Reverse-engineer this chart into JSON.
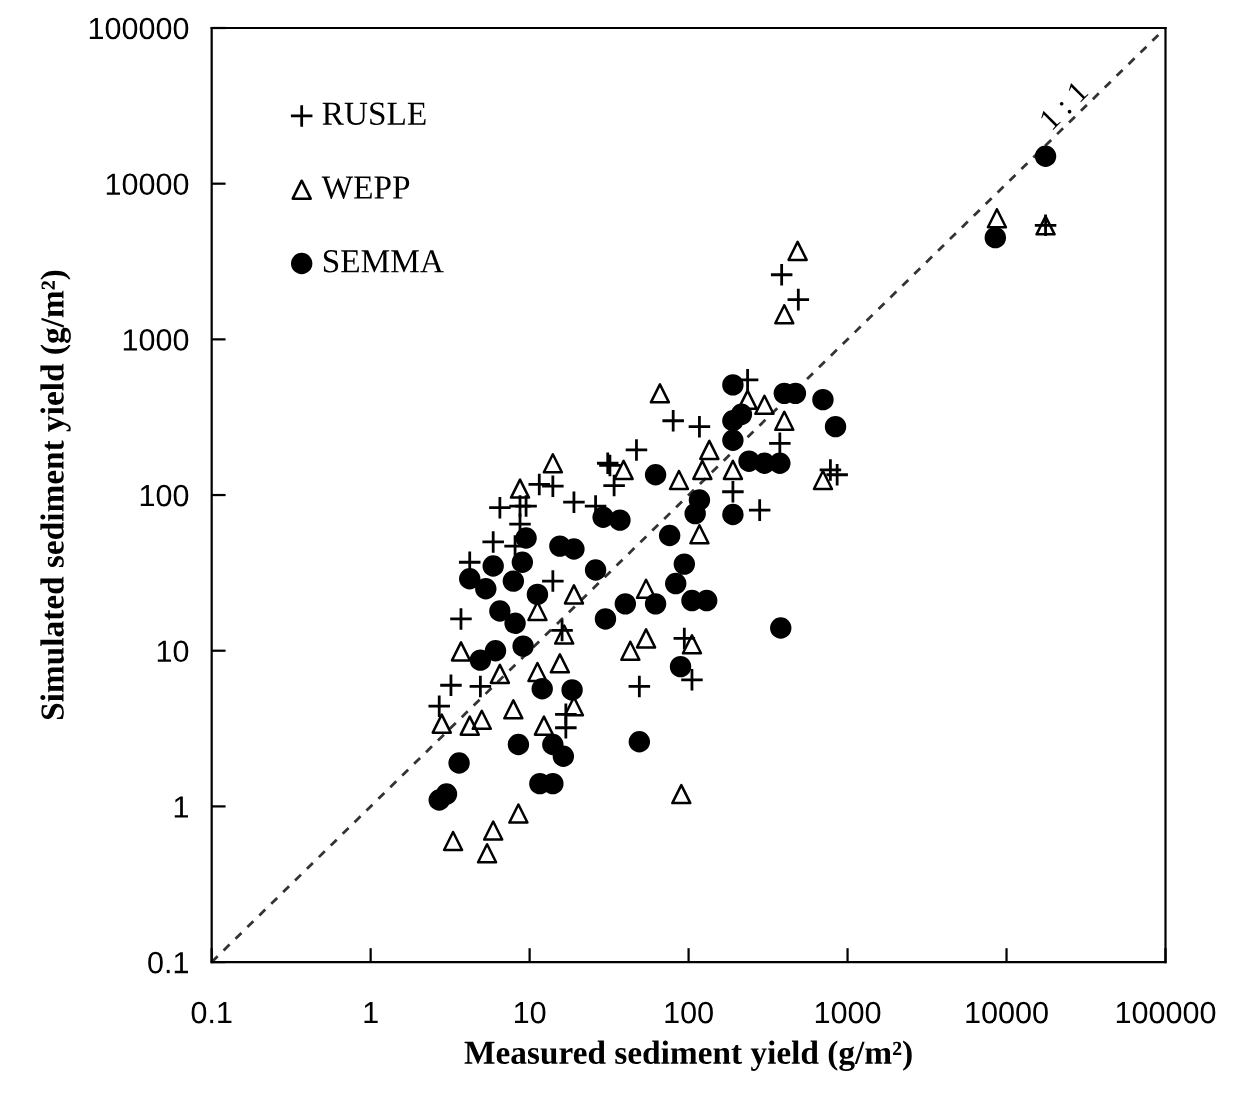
{
  "chart_data": {
    "type": "scatter",
    "xlabel": "Measured sediment yield (g/m²)",
    "ylabel": "Simulated sediment yield (g/m²)",
    "log": "xy",
    "xlim": [
      0.1,
      100000
    ],
    "ylim": [
      0.1,
      100000
    ],
    "xticks": [
      0.1,
      1,
      10,
      100,
      1000,
      10000,
      100000
    ],
    "yticks": [
      0.1,
      1,
      10,
      100,
      1000,
      10000,
      100000
    ],
    "grid": false,
    "legend": "top left",
    "annotations": [
      "1 : 1"
    ],
    "series": [
      {
        "name": "RUSLE",
        "color": "#000000",
        "marker": "cross",
        "x": [
          17600,
          385,
          490,
          80,
          117,
          47,
          32,
          190,
          235,
          375,
          780,
          860,
          280,
          34,
          94,
          105,
          49,
          31,
          11.5,
          14,
          6.5,
          8.7,
          9.5,
          19,
          26,
          8.7,
          5.9,
          8.1,
          4.2,
          14,
          3.7,
          16,
          4.9,
          3.2,
          2.7,
          16.9,
          16.9
        ],
        "values": [
          5400,
          2600,
          1800,
          300,
          275,
          195,
          155,
          105,
          550,
          215,
          145,
          135,
          80,
          115,
          12,
          6.5,
          5.9,
          160,
          117,
          114,
          83,
          85,
          85,
          90,
          85,
          65,
          50,
          47,
          37,
          28,
          16,
          13.5,
          5.9,
          6.0,
          4.4,
          3.9,
          3.2
        ]
      },
      {
        "name": "WEPP",
        "color": "#000000",
        "marker": "triangle",
        "x": [
          8700,
          17600,
          485,
          400,
          66,
          135,
          39,
          87,
          122,
          190,
          235,
          300,
          400,
          700,
          117,
          54,
          54,
          43,
          105,
          14,
          8.7,
          19,
          11.2,
          16.5,
          3.7,
          6.5,
          11.2,
          15.5,
          2.8,
          4.2,
          5.0,
          7.9,
          19,
          12.3,
          8.5,
          5.9,
          3.3,
          5.4,
          90
        ],
        "values": [
          6000,
          5400,
          3700,
          1450,
          450,
          195,
          145,
          125,
          145,
          145,
          410,
          380,
          300,
          125,
          56,
          25,
          12,
          10,
          11,
          160,
          110,
          23,
          18,
          12.7,
          9.9,
          7.1,
          7.3,
          8.3,
          3.4,
          3.3,
          3.6,
          4.2,
          4.4,
          3.3,
          0.9,
          0.7,
          0.6,
          0.5,
          1.2
        ]
      },
      {
        "name": "SEMMA",
        "color": "#000000",
        "marker": "circle",
        "x": [
          17600,
          8500,
          62,
          190,
          190,
          215,
          400,
          470,
          700,
          840,
          190,
          240,
          300,
          375,
          190,
          117,
          110,
          37,
          29,
          76,
          94,
          83,
          105,
          130,
          62,
          40,
          30,
          89,
          380,
          9.5,
          15.5,
          19,
          5.9,
          9,
          4.2,
          5.3,
          7.9,
          11.2,
          26,
          6.5,
          8.1,
          9.1,
          6.1,
          4.9,
          12,
          18.5,
          8.5,
          14,
          16.3,
          3.6,
          11.6,
          14,
          3.0,
          2.7,
          49
        ],
        "values": [
          15000,
          4500,
          135,
          510,
          300,
          330,
          450,
          450,
          410,
          275,
          225,
          165,
          160,
          160,
          75,
          93,
          76,
          69,
          72,
          55,
          36,
          27,
          21,
          21,
          20,
          20,
          16,
          7.9,
          14,
          53,
          47,
          45,
          35,
          37,
          29,
          25,
          28,
          23,
          33,
          18,
          15,
          10.7,
          10,
          8.7,
          5.7,
          5.6,
          2.5,
          2.5,
          2.1,
          1.9,
          1.4,
          1.4,
          1.2,
          1.1,
          2.6
        ]
      },
      {
        "type": "line",
        "color": "#333333",
        "line_style": "dashed",
        "marker": "none",
        "x": [
          0.1,
          100000
        ],
        "values": [
          0.1,
          100000
        ]
      }
    ]
  }
}
